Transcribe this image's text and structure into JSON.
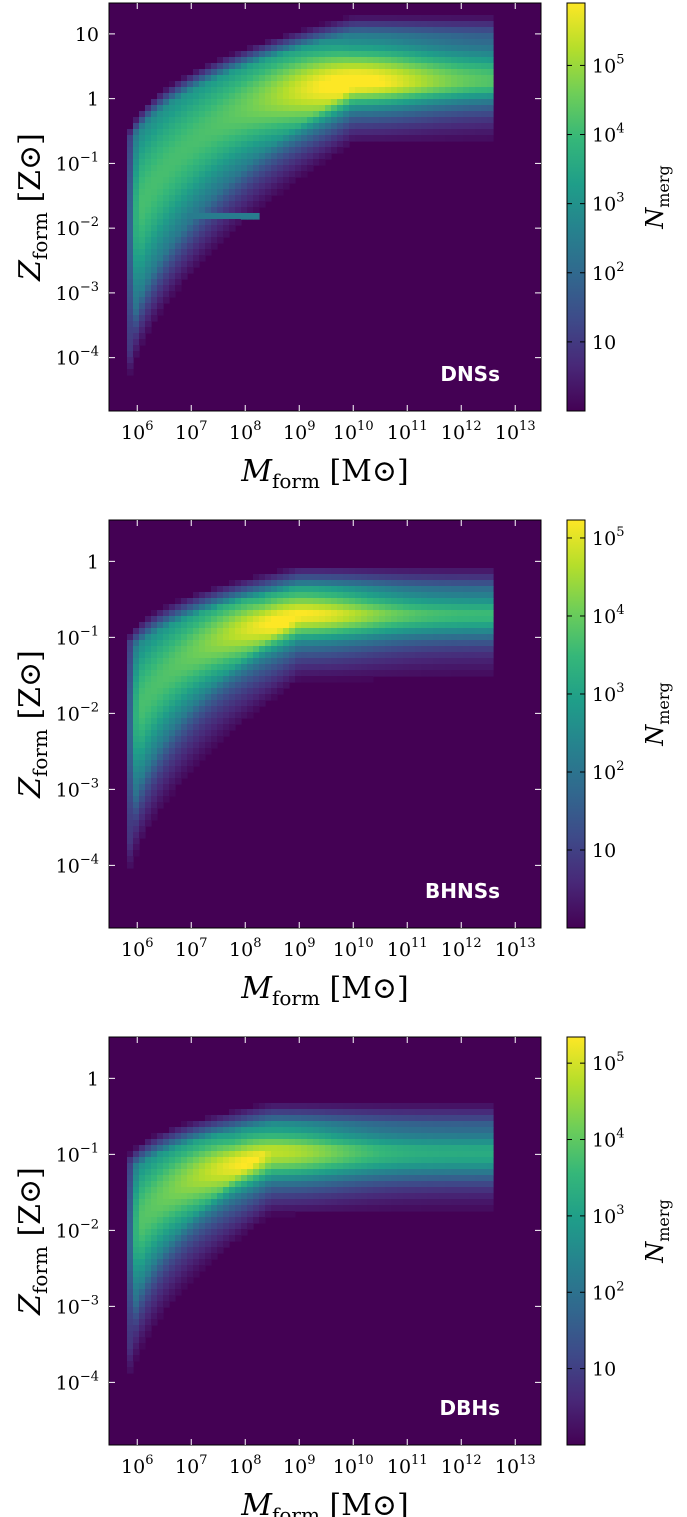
{
  "colors": {
    "background": "#440154",
    "viridis": [
      "#440154",
      "#482878",
      "#3e4a89",
      "#31688e",
      "#26828e",
      "#1f9e89",
      "#35b779",
      "#6ece58",
      "#b5de2b",
      "#fde725"
    ]
  },
  "chart_data": [
    {
      "type": "heatmap",
      "label": "DNSs",
      "xlabel": "M_form [M_⊙]",
      "ylabel": "Z_form [Z_⊙]",
      "xscale": "log",
      "yscale": "log",
      "xlim": [
        300000,
        30000000000000
      ],
      "ylim": [
        1.5e-05,
        30
      ],
      "xticks": [
        {
          "value": 1000000,
          "base": "10",
          "exp": "6"
        },
        {
          "value": 10000000,
          "base": "10",
          "exp": "7"
        },
        {
          "value": 100000000,
          "base": "10",
          "exp": "8"
        },
        {
          "value": 1000000000,
          "base": "10",
          "exp": "9"
        },
        {
          "value": 10000000000,
          "base": "10",
          "exp": "10"
        },
        {
          "value": 100000000000,
          "base": "10",
          "exp": "11"
        },
        {
          "value": 1000000000000,
          "base": "10",
          "exp": "12"
        },
        {
          "value": 10000000000000,
          "base": "10",
          "exp": "13"
        }
      ],
      "yticks": [
        {
          "value": 10,
          "base": "10",
          "exp": ""
        },
        {
          "value": 1,
          "base": "1",
          "exp": ""
        },
        {
          "value": 0.1,
          "base": "10",
          "exp": "−1"
        },
        {
          "value": 0.01,
          "base": "10",
          "exp": "−2"
        },
        {
          "value": 0.001,
          "base": "10",
          "exp": "−3"
        },
        {
          "value": 0.0001,
          "base": "10",
          "exp": "−4"
        }
      ],
      "colorbar": {
        "label": "N_merg",
        "scale": "log",
        "range": [
          1,
          800000
        ],
        "ticks": [
          {
            "value": 100000,
            "base": "10",
            "exp": "5"
          },
          {
            "value": 10000,
            "base": "10",
            "exp": "4"
          },
          {
            "value": 1000,
            "base": "10",
            "exp": "3"
          },
          {
            "value": 100,
            "base": "10",
            "exp": "2"
          },
          {
            "value": 10,
            "base": "10",
            "exp": ""
          }
        ]
      },
      "distribution": {
        "peak_mass": 10000000000,
        "peak_Z": 1.2,
        "ridge_Z_min": 0.0001,
        "ridge_Z_max": 1.5,
        "upper_Z": 10,
        "mass_max": 3500000000000,
        "floor_Z": 0.016
      }
    },
    {
      "type": "heatmap",
      "label": "BHNSs",
      "xlabel": "M_form [M_⊙]",
      "ylabel": "Z_form [Z_⊙]",
      "xscale": "log",
      "yscale": "log",
      "xlim": [
        300000,
        30000000000000
      ],
      "ylim": [
        1.5e-05,
        3.5
      ],
      "xticks": [
        {
          "value": 1000000,
          "base": "10",
          "exp": "6"
        },
        {
          "value": 10000000,
          "base": "10",
          "exp": "7"
        },
        {
          "value": 100000000,
          "base": "10",
          "exp": "8"
        },
        {
          "value": 1000000000,
          "base": "10",
          "exp": "9"
        },
        {
          "value": 10000000000,
          "base": "10",
          "exp": "10"
        },
        {
          "value": 100000000000,
          "base": "10",
          "exp": "11"
        },
        {
          "value": 1000000000000,
          "base": "10",
          "exp": "12"
        },
        {
          "value": 10000000000000,
          "base": "10",
          "exp": "13"
        }
      ],
      "yticks": [
        {
          "value": 1,
          "base": "1",
          "exp": ""
        },
        {
          "value": 0.1,
          "base": "10",
          "exp": "−1"
        },
        {
          "value": 0.01,
          "base": "10",
          "exp": "−2"
        },
        {
          "value": 0.001,
          "base": "10",
          "exp": "−3"
        },
        {
          "value": 0.0001,
          "base": "10",
          "exp": "−4"
        }
      ],
      "colorbar": {
        "label": "N_merg",
        "scale": "log",
        "range": [
          1,
          170000
        ],
        "ticks": [
          {
            "value": 100000,
            "base": "10",
            "exp": "5"
          },
          {
            "value": 10000,
            "base": "10",
            "exp": "4"
          },
          {
            "value": 1000,
            "base": "10",
            "exp": "3"
          },
          {
            "value": 100,
            "base": "10",
            "exp": "2"
          },
          {
            "value": 10,
            "base": "10",
            "exp": ""
          }
        ]
      },
      "distribution": {
        "peak_mass": 1000000000,
        "peak_Z": 0.12,
        "ridge_Z_min": 0.0002,
        "ridge_Z_max": 0.2,
        "upper_Z": 0.45,
        "mass_max": 3500000000000,
        "floor_Z": 0
      }
    },
    {
      "type": "heatmap",
      "label": "DBHs",
      "xlabel": "M_form [M_⊙]",
      "ylabel": "Z_form [Z_⊙]",
      "xscale": "log",
      "yscale": "log",
      "xlim": [
        300000,
        30000000000000
      ],
      "ylim": [
        1.5e-05,
        3.5
      ],
      "xticks": [
        {
          "value": 1000000,
          "base": "10",
          "exp": "6"
        },
        {
          "value": 10000000,
          "base": "10",
          "exp": "7"
        },
        {
          "value": 100000000,
          "base": "10",
          "exp": "8"
        },
        {
          "value": 1000000000,
          "base": "10",
          "exp": "9"
        },
        {
          "value": 10000000000,
          "base": "10",
          "exp": "10"
        },
        {
          "value": 100000000000,
          "base": "10",
          "exp": "11"
        },
        {
          "value": 1000000000000,
          "base": "10",
          "exp": "12"
        },
        {
          "value": 10000000000000,
          "base": "10",
          "exp": "13"
        }
      ],
      "yticks": [
        {
          "value": 1,
          "base": "1",
          "exp": ""
        },
        {
          "value": 0.1,
          "base": "10",
          "exp": "−1"
        },
        {
          "value": 0.01,
          "base": "10",
          "exp": "−2"
        },
        {
          "value": 0.001,
          "base": "10",
          "exp": "−3"
        },
        {
          "value": 0.0001,
          "base": "10",
          "exp": "−4"
        }
      ],
      "colorbar": {
        "label": "N_merg",
        "scale": "log",
        "range": [
          1,
          220000
        ],
        "ticks": [
          {
            "value": 100000,
            "base": "10",
            "exp": "5"
          },
          {
            "value": 10000,
            "base": "10",
            "exp": "4"
          },
          {
            "value": 1000,
            "base": "10",
            "exp": "3"
          },
          {
            "value": 100,
            "base": "10",
            "exp": "2"
          },
          {
            "value": 10,
            "base": "10",
            "exp": ""
          }
        ]
      },
      "distribution": {
        "peak_mass": 300000000,
        "peak_Z": 0.05,
        "ridge_Z_min": 0.0003,
        "ridge_Z_max": 0.12,
        "upper_Z": 0.25,
        "mass_max": 3500000000000,
        "floor_Z": 0
      }
    }
  ]
}
